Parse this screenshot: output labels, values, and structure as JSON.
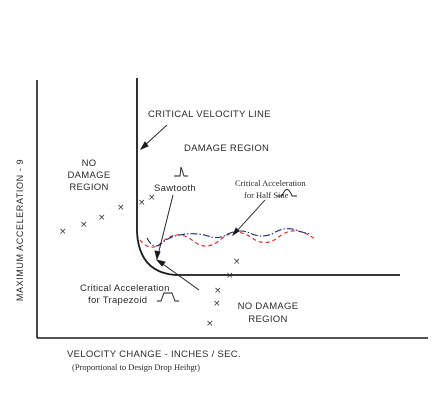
{
  "axes": {
    "y_label": "MAXIMUM  ACCELERATION - 9",
    "x_label": "VELOCITY CHANGE -  INCHES / SEC.",
    "x_sublabel": "(Proportional to Design Drop Heihgt)"
  },
  "labels": {
    "critical_velocity_line": "CRITICAL  VELOCITY LINE",
    "damage_region": "DAMAGE REGION",
    "no_damage_left": [
      "NO",
      "DAMAGE",
      "REGION"
    ],
    "no_damage_right": [
      "NO  DAMAGE",
      "REGION"
    ],
    "sawtooth": "Sawtooth",
    "crit_half_sine": [
      "Critical Acceleration",
      "for Half Sine"
    ],
    "crit_trapezoid": [
      "Critical  Acceleration",
      "for  Trapezoid"
    ]
  },
  "marker_symbol": "×",
  "colors": {
    "axis": "#1a1a1a",
    "boundary": "#1a1a1a",
    "half_sine_curve": "#e02020",
    "sawtooth_curve": "#1a2f7a",
    "markers": "#333333"
  }
}
